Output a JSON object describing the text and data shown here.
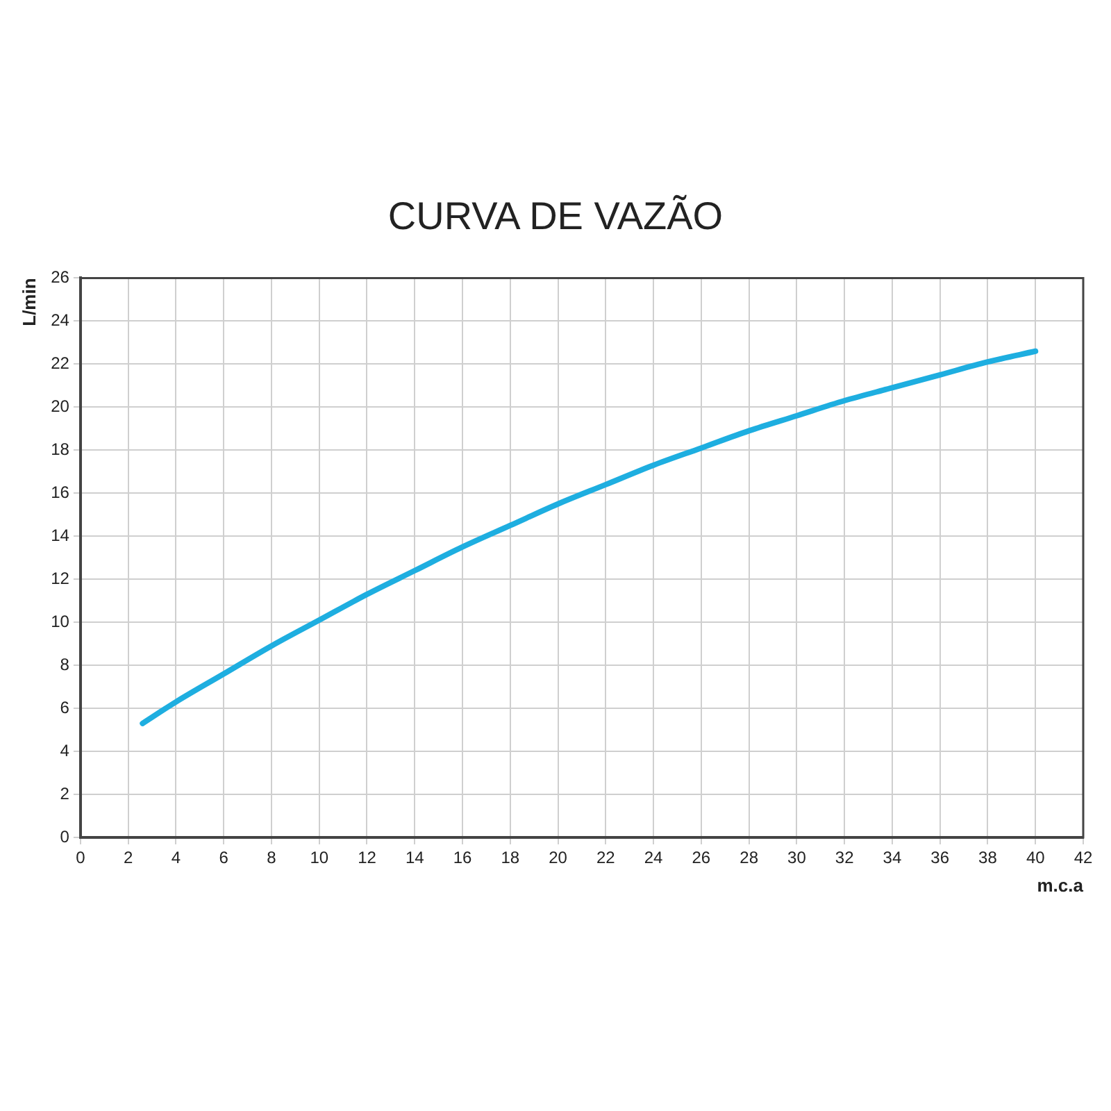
{
  "chart_data": {
    "type": "line",
    "title": "CURVA DE VAZÃO",
    "xlabel": "m.c.a",
    "ylabel": "L/min",
    "x": [
      2.6,
      4,
      6,
      8,
      10,
      12,
      14,
      16,
      18,
      20,
      22,
      24,
      26,
      28,
      30,
      32,
      34,
      36,
      38,
      40
    ],
    "series": [
      {
        "color": "#1eaee0",
        "values": [
          5.3,
          6.3,
          7.6,
          8.9,
          10.1,
          11.3,
          12.4,
          13.5,
          14.5,
          15.5,
          16.4,
          17.3,
          18.1,
          18.9,
          19.6,
          20.3,
          20.9,
          21.5,
          22.1,
          22.6
        ]
      }
    ],
    "xlim": [
      0,
      42
    ],
    "xticks": [
      0,
      2,
      4,
      6,
      8,
      10,
      12,
      14,
      16,
      18,
      20,
      22,
      24,
      26,
      28,
      30,
      32,
      34,
      36,
      38,
      40,
      42
    ],
    "ylim": [
      0,
      26
    ],
    "yticks": [
      0,
      2,
      4,
      6,
      8,
      10,
      12,
      14,
      16,
      18,
      20,
      22,
      24,
      26
    ],
    "grid": true,
    "legend": false,
    "marker": "none",
    "line_style": "solid"
  }
}
